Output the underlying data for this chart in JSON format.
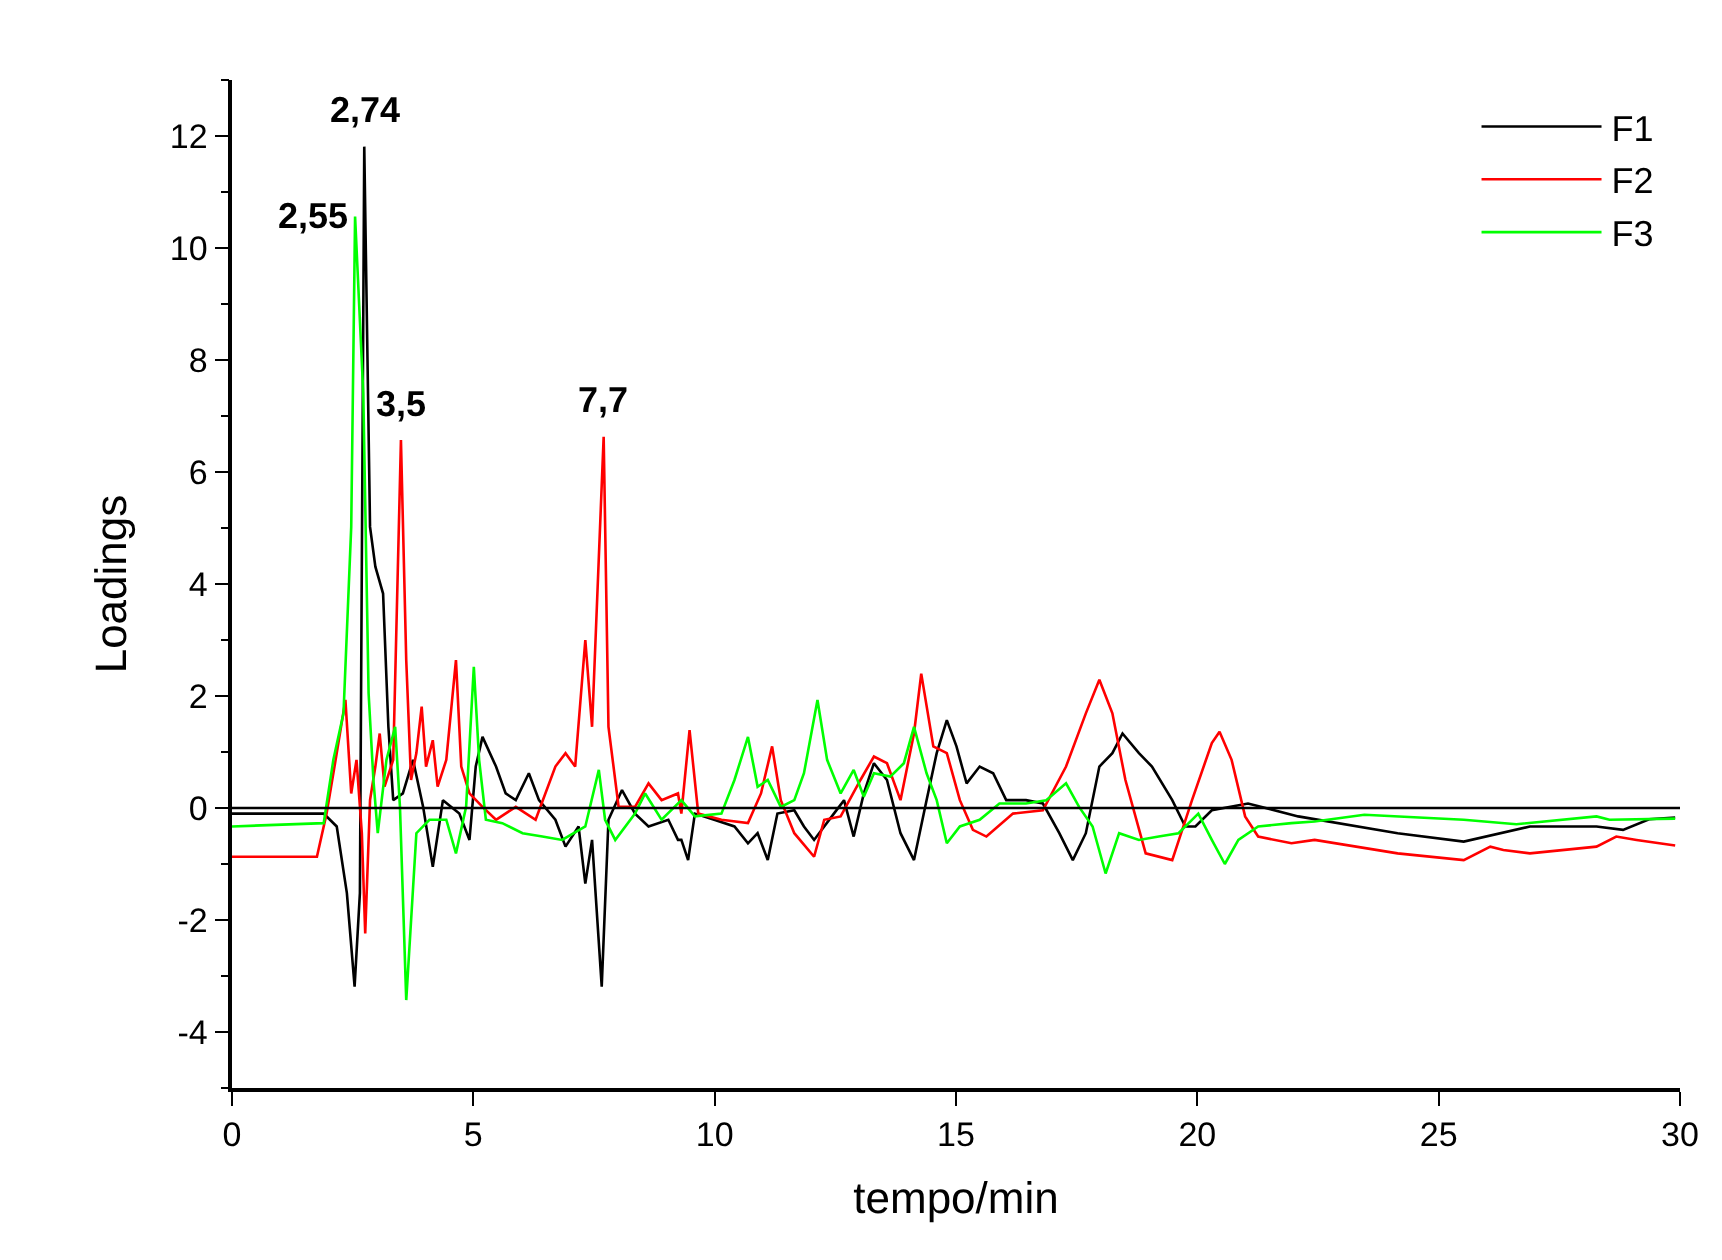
{
  "chart_data": {
    "type": "line",
    "xlabel": "tempo/min",
    "ylabel": "Loadings",
    "xlim": [
      0,
      30
    ],
    "xticks": [
      0,
      5,
      10,
      15,
      20,
      25,
      30
    ],
    "ylim": [
      -5,
      13
    ],
    "yticks": [
      {
        "value": -5,
        "label": null
      },
      -4,
      {
        "value": -3,
        "label": null
      },
      -2,
      {
        "value": -1,
        "label": null
      },
      0,
      {
        "value": 1,
        "label": null
      },
      2,
      {
        "value": 3,
        "label": null
      },
      4,
      {
        "value": 5,
        "label": null
      },
      6,
      {
        "value": 7,
        "label": null
      },
      8,
      {
        "value": 9,
        "label": null
      },
      10,
      {
        "value": 11,
        "label": null
      },
      12,
      {
        "value": 13,
        "label": null
      }
    ],
    "grid": false,
    "legend": "top right",
    "marker": "none",
    "line_style": "solid",
    "ref_lines": [
      {
        "axis": "y",
        "value": 0,
        "color": "#000000"
      }
    ],
    "annotations": [
      {
        "text": "2,74",
        "x": 2.74,
        "y": 11.81
      },
      {
        "text": "2,55",
        "x": 2.55,
        "y": 10.56
      },
      {
        "text": "3,5",
        "x": 3.5,
        "y": 6.57
      },
      {
        "text": "7,7",
        "x": 7.7,
        "y": 6.63
      }
    ],
    "series": [
      {
        "name": "F1",
        "color": "#000000",
        "x": [
          0,
          1.9,
          2.17,
          2.38,
          2.54,
          2.65,
          2.74,
          2.86,
          2.97,
          3.13,
          3.24,
          3.34,
          3.54,
          3.75,
          3.96,
          4.16,
          4.37,
          4.71,
          4.92,
          5.05,
          5.19,
          5.47,
          5.67,
          5.88,
          6.15,
          6.36,
          6.7,
          6.91,
          7.18,
          7.32,
          7.46,
          7.66,
          7.8,
          8.08,
          8.35,
          8.63,
          9.04,
          9.24,
          9.31,
          9.45,
          9.59,
          9.99,
          10.41,
          10.69,
          10.89,
          11.1,
          11.3,
          11.65,
          11.85,
          12.06,
          12.47,
          12.68,
          12.88,
          13.09,
          13.3,
          13.57,
          13.85,
          14.13,
          14.39,
          14.6,
          14.81,
          15.01,
          15.22,
          15.49,
          15.77,
          16.04,
          16.45,
          16.8,
          17.14,
          17.42,
          17.69,
          17.97,
          18.24,
          18.45,
          18.79,
          19.06,
          19.48,
          19.75,
          19.96,
          20.3,
          21.05,
          22.09,
          24.15,
          25.52,
          26.89,
          28.27,
          28.82,
          29.36,
          29.9
        ],
        "values": [
          -0.1,
          -0.1,
          -0.33,
          -1.52,
          -3.19,
          -1.52,
          11.81,
          5.02,
          4.31,
          3.83,
          1.45,
          0.14,
          0.26,
          0.86,
          0.02,
          -1.05,
          0.14,
          -0.1,
          -0.57,
          0.74,
          1.27,
          0.74,
          0.26,
          0.14,
          0.62,
          0.14,
          -0.21,
          -0.69,
          -0.33,
          -1.35,
          -0.57,
          -3.19,
          -0.21,
          0.32,
          -0.1,
          -0.33,
          -0.21,
          -0.57,
          -0.57,
          -0.93,
          -0.1,
          -0.21,
          -0.33,
          -0.63,
          -0.45,
          -0.93,
          -0.1,
          -0.04,
          -0.33,
          -0.57,
          -0.1,
          0.14,
          -0.51,
          0.26,
          0.8,
          0.5,
          -0.45,
          -0.93,
          0.14,
          0.98,
          1.57,
          1.1,
          0.44,
          0.74,
          0.62,
          0.14,
          0.14,
          0.08,
          -0.45,
          -0.93,
          -0.45,
          0.74,
          0.98,
          1.33,
          0.98,
          0.74,
          0.14,
          -0.33,
          -0.33,
          -0.04,
          0.08,
          -0.15,
          -0.45,
          -0.6,
          -0.33,
          -0.33,
          -0.39,
          -0.2,
          -0.17
        ]
      },
      {
        "name": "F2",
        "color": "#ff0000",
        "x": [
          0,
          1.76,
          1.96,
          2.17,
          2.35,
          2.47,
          2.58,
          2.69,
          2.76,
          2.86,
          2.97,
          3.06,
          3.16,
          3.34,
          3.5,
          3.61,
          3.71,
          3.82,
          3.93,
          4.02,
          4.16,
          4.26,
          4.44,
          4.64,
          4.75,
          4.92,
          5.19,
          5.47,
          5.88,
          6.29,
          6.7,
          6.91,
          7.11,
          7.32,
          7.46,
          7.7,
          7.8,
          8.01,
          8.35,
          8.63,
          8.9,
          9.24,
          9.31,
          9.48,
          9.66,
          10.14,
          10.69,
          10.96,
          11.19,
          11.37,
          11.65,
          12.06,
          12.27,
          12.61,
          13.02,
          13.3,
          13.57,
          13.85,
          14.13,
          14.28,
          14.53,
          14.81,
          15.08,
          15.35,
          15.63,
          16.18,
          16.8,
          17.28,
          17.69,
          17.97,
          18.24,
          18.51,
          18.93,
          19.48,
          19.89,
          20.3,
          20.46,
          20.71,
          20.99,
          21.26,
          21.95,
          22.43,
          24.15,
          25.52,
          26.07,
          26.34,
          26.89,
          28.27,
          28.68,
          29.1,
          29.9
        ],
        "values": [
          -0.87,
          -0.87,
          -0.1,
          0.98,
          1.93,
          0.26,
          0.86,
          -0.45,
          -2.24,
          0.14,
          0.74,
          1.33,
          0.38,
          0.86,
          6.57,
          2.64,
          0.5,
          0.98,
          1.81,
          0.74,
          1.21,
          0.38,
          0.86,
          2.64,
          0.74,
          0.26,
          0.02,
          -0.21,
          0.02,
          -0.21,
          0.74,
          0.98,
          0.74,
          3.0,
          1.45,
          6.63,
          1.45,
          0.02,
          0.02,
          0.44,
          0.14,
          0.26,
          -0.1,
          1.39,
          -0.1,
          -0.21,
          -0.27,
          0.26,
          1.1,
          0.14,
          -0.45,
          -0.87,
          -0.21,
          -0.15,
          0.5,
          0.92,
          0.8,
          0.14,
          1.33,
          2.4,
          1.1,
          0.98,
          0.14,
          -0.39,
          -0.51,
          -0.1,
          -0.04,
          0.74,
          1.69,
          2.29,
          1.69,
          0.5,
          -0.81,
          -0.93,
          0.14,
          1.16,
          1.36,
          0.86,
          -0.15,
          -0.51,
          -0.63,
          -0.57,
          -0.81,
          -0.93,
          -0.69,
          -0.75,
          -0.81,
          -0.69,
          -0.51,
          -0.57,
          -0.67
        ]
      },
      {
        "name": "F3",
        "color": "#00ff00",
        "x": [
          0,
          1.9,
          2.1,
          2.31,
          2.47,
          2.55,
          2.72,
          2.83,
          2.93,
          3.02,
          3.2,
          3.38,
          3.48,
          3.61,
          3.82,
          4.09,
          4.44,
          4.64,
          4.85,
          5.01,
          5.12,
          5.26,
          5.6,
          6.02,
          6.43,
          6.84,
          7.32,
          7.6,
          7.73,
          7.94,
          8.35,
          8.56,
          8.9,
          9.31,
          9.59,
          10.14,
          10.41,
          10.69,
          10.89,
          11.1,
          11.37,
          11.65,
          11.85,
          12.13,
          12.33,
          12.61,
          12.88,
          13.09,
          13.3,
          13.64,
          13.92,
          14.13,
          14.39,
          14.6,
          14.81,
          15.08,
          15.49,
          15.9,
          16.45,
          16.87,
          17.28,
          17.55,
          17.83,
          18.1,
          18.38,
          18.79,
          19.2,
          19.61,
          20.02,
          20.3,
          20.57,
          20.85,
          21.26,
          21.95,
          22.43,
          23.46,
          25.52,
          26.61,
          28.27,
          28.54,
          29.9
        ],
        "values": [
          -0.33,
          -0.27,
          0.86,
          1.69,
          5.02,
          10.56,
          7.4,
          2.05,
          0.5,
          -0.45,
          0.86,
          1.45,
          0.02,
          -3.43,
          -0.45,
          -0.21,
          -0.21,
          -0.81,
          0.02,
          2.52,
          0.86,
          -0.21,
          -0.27,
          -0.45,
          -0.51,
          -0.57,
          -0.33,
          0.68,
          -0.21,
          -0.57,
          -0.1,
          0.26,
          -0.21,
          0.14,
          -0.15,
          -0.1,
          0.5,
          1.27,
          0.38,
          0.5,
          0.02,
          0.14,
          0.62,
          1.93,
          0.86,
          0.26,
          0.68,
          0.2,
          0.62,
          0.56,
          0.8,
          1.45,
          0.62,
          0.14,
          -0.63,
          -0.33,
          -0.21,
          0.08,
          0.08,
          0.14,
          0.44,
          0.02,
          -0.33,
          -1.17,
          -0.45,
          -0.57,
          -0.51,
          -0.45,
          -0.1,
          -0.57,
          -1.0,
          -0.57,
          -0.33,
          -0.27,
          -0.24,
          -0.12,
          -0.21,
          -0.29,
          -0.15,
          -0.21,
          -0.19
        ]
      }
    ]
  }
}
